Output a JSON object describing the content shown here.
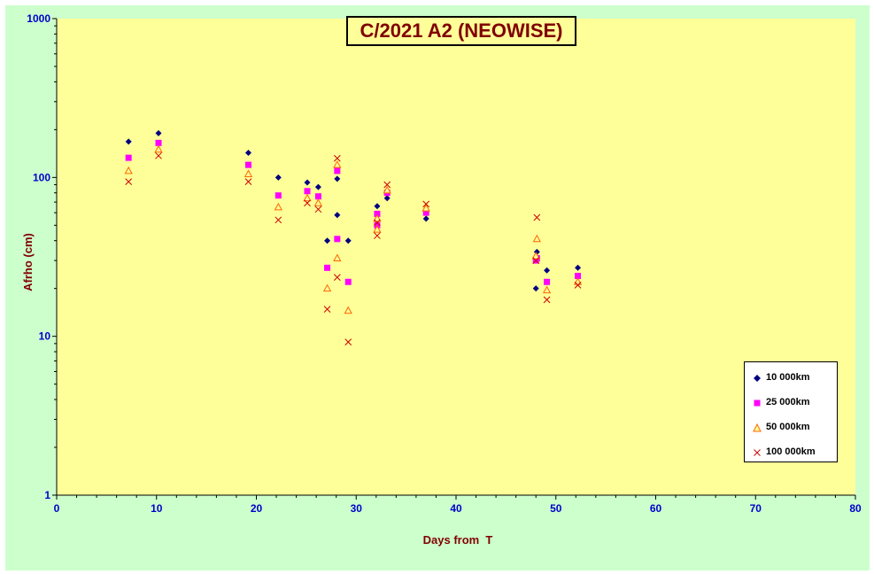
{
  "chart_data": {
    "type": "scatter",
    "title": "C/2021 A2 (NEOWISE)",
    "xlabel": "Days from  T",
    "ylabel": "Afrho (cm)",
    "xlim": [
      0,
      80
    ],
    "ylim": [
      1,
      1000
    ],
    "yscale": "log",
    "x_ticks": [
      "0",
      "10",
      "20",
      "30",
      "40",
      "50",
      "60",
      "70",
      "80"
    ],
    "y_ticks": [
      "1",
      "10",
      "100",
      "1000"
    ],
    "legend_position": "bottom-right",
    "series": [
      {
        "name": "10 000km",
        "marker": "diamond",
        "color": "#000080",
        "points": [
          [
            7.2,
            168
          ],
          [
            10.2,
            190
          ],
          [
            19.2,
            143
          ],
          [
            22.2,
            100
          ],
          [
            25.1,
            93
          ],
          [
            26.2,
            87
          ],
          [
            27.1,
            40
          ],
          [
            28.1,
            98
          ],
          [
            28.1,
            58
          ],
          [
            29.2,
            40
          ],
          [
            32.1,
            66
          ],
          [
            33.1,
            74
          ],
          [
            37.0,
            55
          ],
          [
            48.1,
            34
          ],
          [
            48.0,
            20
          ],
          [
            49.1,
            26
          ],
          [
            52.2,
            27
          ]
        ]
      },
      {
        "name": "25 000km",
        "marker": "square",
        "color": "#ff00ff",
        "points": [
          [
            7.2,
            133
          ],
          [
            10.2,
            165
          ],
          [
            19.2,
            120
          ],
          [
            22.2,
            77
          ],
          [
            25.1,
            82
          ],
          [
            26.2,
            76
          ],
          [
            27.1,
            27
          ],
          [
            28.1,
            110
          ],
          [
            28.1,
            41
          ],
          [
            29.2,
            22
          ],
          [
            32.1,
            59
          ],
          [
            32.1,
            50
          ],
          [
            33.1,
            80
          ],
          [
            37.0,
            60
          ],
          [
            48.1,
            31
          ],
          [
            48.0,
            30
          ],
          [
            49.1,
            22
          ],
          [
            52.2,
            24
          ]
        ]
      },
      {
        "name": "50 000km",
        "marker": "triangle",
        "color": "#ff6600",
        "points": [
          [
            7.2,
            110
          ],
          [
            10.2,
            150
          ],
          [
            19.2,
            105
          ],
          [
            22.2,
            65
          ],
          [
            25.1,
            74
          ],
          [
            26.2,
            69
          ],
          [
            27.1,
            20
          ],
          [
            28.1,
            120
          ],
          [
            28.1,
            31
          ],
          [
            29.2,
            14.5
          ],
          [
            32.1,
            55
          ],
          [
            32.1,
            47
          ],
          [
            33.1,
            83
          ],
          [
            37.0,
            64
          ],
          [
            48.1,
            41
          ],
          [
            48.0,
            32
          ],
          [
            49.1,
            19.5
          ],
          [
            52.2,
            22
          ]
        ]
      },
      {
        "name": "100 000km",
        "marker": "x",
        "color": "#cc0000",
        "points": [
          [
            7.2,
            94
          ],
          [
            10.2,
            137
          ],
          [
            19.2,
            94
          ],
          [
            22.2,
            54
          ],
          [
            25.1,
            69
          ],
          [
            26.2,
            63
          ],
          [
            27.1,
            14.8
          ],
          [
            28.1,
            132
          ],
          [
            28.1,
            23.5
          ],
          [
            29.2,
            9.2
          ],
          [
            32.1,
            52
          ],
          [
            32.1,
            43
          ],
          [
            33.1,
            90
          ],
          [
            37.0,
            68
          ],
          [
            48.1,
            56
          ],
          [
            48.0,
            30
          ],
          [
            49.1,
            17
          ],
          [
            52.2,
            21
          ]
        ]
      }
    ]
  }
}
